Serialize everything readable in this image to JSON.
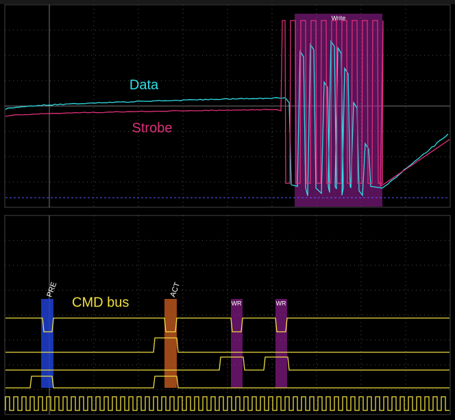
{
  "top_panel": {
    "box_label": "Write",
    "trace_labels": [
      "Data",
      "Strobe"
    ]
  },
  "bottom_panel": {
    "bus_label": "CMD bus",
    "commands": [
      "PRE",
      "ACT",
      "WR",
      "WR"
    ]
  }
}
